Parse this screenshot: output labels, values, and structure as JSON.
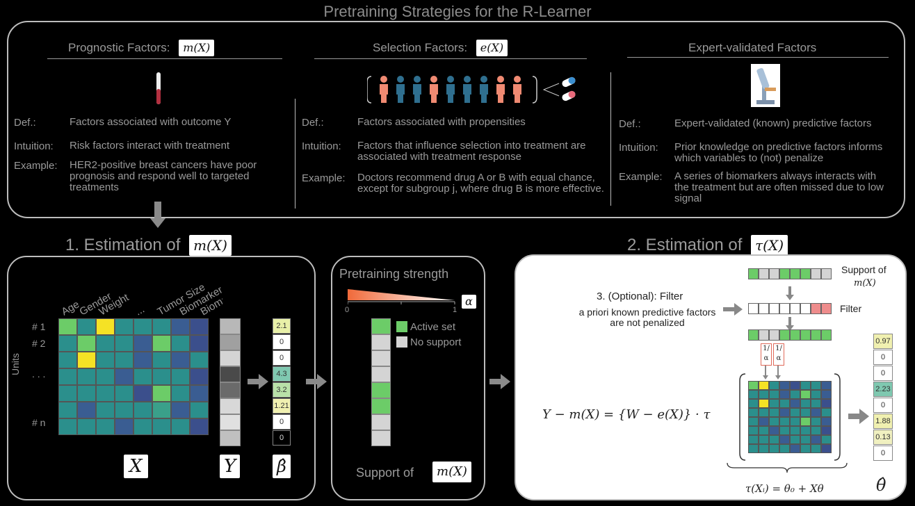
{
  "title": "Pretraining Strategies for the R-Learner",
  "columns": [
    {
      "heading": "Prognostic Factors:",
      "math": "m(X)",
      "def_label": "Def.:",
      "def": "Factors associated with outcome Y",
      "intuition_label": "Intuition:",
      "intuition": "Risk factors interact with treatment",
      "example_label": "Example:",
      "example": "HER2-positive breast cancers have poor prognosis and respond well to targeted treatments"
    },
    {
      "heading": "Selection Factors:",
      "math": "e(X)",
      "def_label": "Def.:",
      "def": "Factors associated with propensities",
      "intuition_label": "Intuition:",
      "intuition": "Factors that influence selection into treatment are associated with treatment response",
      "example_label": "Example:",
      "example": "Doctors recommend drug A or B with equal chance, except for subgroup j, where drug B is more effective."
    },
    {
      "heading": "Expert-validated Factors",
      "math": "",
      "def_label": "Def.:",
      "def": "Expert-validated (known) predictive factors",
      "intuition_label": "Intuition:",
      "intuition": "Prior knowledge on predictive factors informs which variables to (not) penalize",
      "example_label": "Example:",
      "example": "A series of biomarkers always interacts with the treatment but are often missed due to low signal"
    }
  ],
  "step1": {
    "title": "1. Estimation of",
    "math": "m(X)",
    "col_labels": [
      "Age",
      "Gender",
      "Weight",
      "...",
      "Tumor Size",
      "Biomarker I",
      "Biomarker II"
    ],
    "row_labels": [
      "# 1",
      "# 2",
      ". . .",
      "# n"
    ],
    "axis_label": "Units",
    "X_label": "X",
    "Y_label": "Y",
    "beta_label": "β̂",
    "beta_values": [
      "2.1",
      "0",
      "0",
      "4.3",
      "3.2",
      "1.21",
      "0",
      "0"
    ]
  },
  "pretrain": {
    "title": "Pretraining strength",
    "alpha": "α",
    "tick0": "0",
    "tick1": "1",
    "legend_active": "Active set",
    "legend_nosupport": "No support",
    "support_label": "Support of",
    "support_math": "m(X)"
  },
  "step2": {
    "title": "2. Estimation of",
    "math": "τ(X)",
    "filter_title": "3. (Optional): Filter",
    "filter_text": "a priori known predictive factors are not penalized",
    "support_of": "Support of",
    "support_math": "m(X)",
    "filter_label": "Filter",
    "frac": "1/α",
    "equation": "Y − m(X) = {W − e(X)} · τ",
    "tau_eq": "τ(Xᵢ) = θ₀ + Xθ",
    "theta_label": "θ̂",
    "theta_values": [
      "0.97",
      "0",
      "0",
      "2.23",
      "0",
      "1.88",
      "0.13",
      "0"
    ]
  },
  "colors": {
    "yellow": "#f5e225",
    "green": "#6ccc68",
    "teal": "#2b8f8c",
    "teal2": "#3aa08a",
    "blue": "#3a5d92",
    "navy": "#3b4f8c",
    "salmon": "#f08a72",
    "pink": "#ee8c8c",
    "people_blue": "#2f6f8f"
  }
}
